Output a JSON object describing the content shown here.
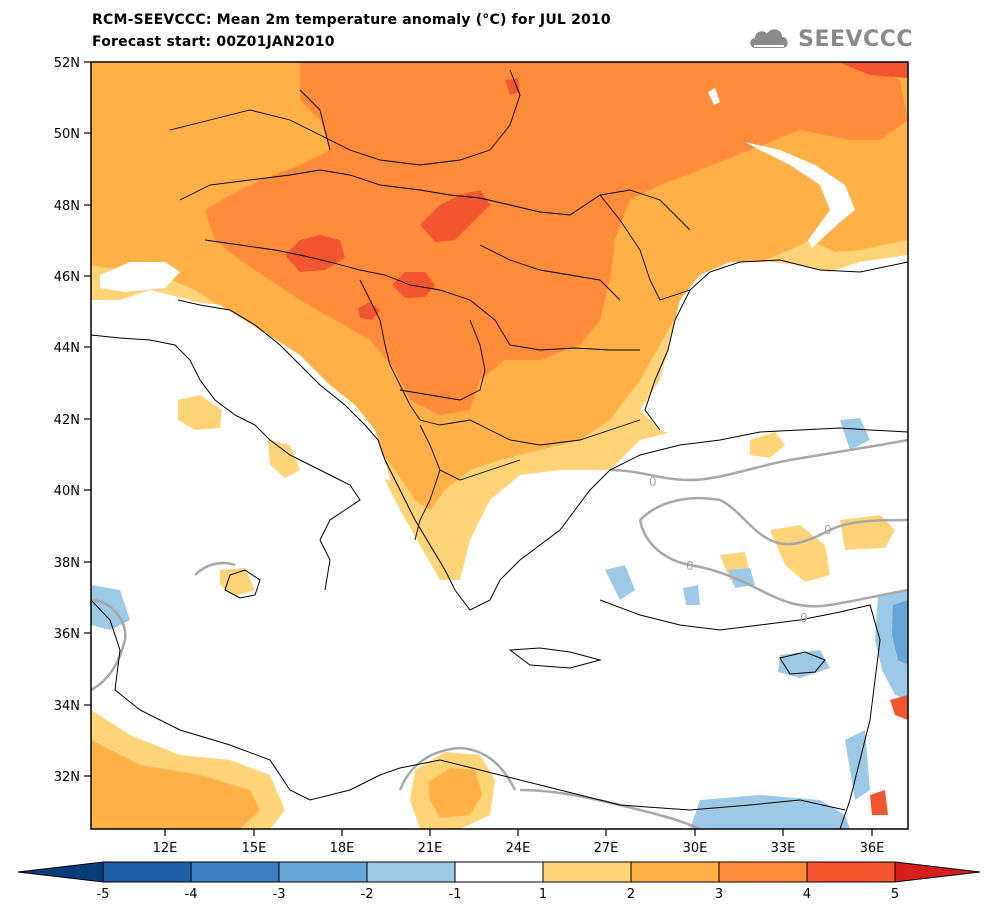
{
  "header": {
    "title": "RCM-SEEVCCC: Mean 2m temperature anomaly (°C) for JUL 2010",
    "forecast": "Forecast start: 00Z01JAN2010",
    "logo_text": "SEEVCCC"
  },
  "map": {
    "lat_labels": [
      "52N",
      "50N",
      "48N",
      "46N",
      "44N",
      "42N",
      "40N",
      "38N",
      "36N",
      "34N",
      "32N"
    ],
    "lon_labels": [
      "12E",
      "15E",
      "18E",
      "21E",
      "24E",
      "27E",
      "30E",
      "33E",
      "36E"
    ],
    "contour_labels": [
      "0",
      "0",
      "0",
      "0"
    ]
  },
  "colorbar": {
    "labels": [
      "-5",
      "-4",
      "-3",
      "-2",
      "-1",
      "1",
      "2",
      "3",
      "4",
      "5"
    ],
    "colors": [
      "#1f5fa6",
      "#3a7fc0",
      "#66a5d8",
      "#9ccae6",
      "#ffffff",
      "#ffd479",
      "#ffb148",
      "#ff8c3a",
      "#f25530"
    ],
    "low_extend_color": "#0b3c7a",
    "high_extend_color": "#d81d1d"
  },
  "colors": {
    "anom_1_2": "#ffd479",
    "anom_2_3": "#ffb148",
    "anom_3_4": "#ff8c3a",
    "anom_4_5": "#f25530",
    "anom_gt5": "#d81d1d",
    "neg_1_2": "#9ccae6",
    "neg_2_3": "#66a5d8",
    "zero_contour": "#a8a8a8"
  }
}
